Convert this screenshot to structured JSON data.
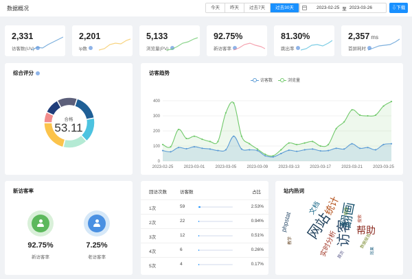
{
  "header": {
    "title": "数据概况",
    "range_tabs": [
      "今天",
      "昨天",
      "过去7天",
      "过去30天"
    ],
    "active_tab_index": 3,
    "date_from": "2023-02-25",
    "date_sep": "至",
    "date_to": "2023-03-26",
    "download_label": "下载"
  },
  "stats": [
    {
      "value": "2,331",
      "unit": "",
      "label": "访客数(UV)",
      "spark_color": "#5b9bd5"
    },
    {
      "value": "2,201",
      "unit": "",
      "label": "Ip数",
      "spark_color": "#f6c85f"
    },
    {
      "value": "5,133",
      "unit": "",
      "label": "浏览量(PV)",
      "spark_color": "#6dc96d"
    },
    {
      "value": "92.75%",
      "unit": "",
      "label": "新访客率",
      "spark_color": "#f28b9b"
    },
    {
      "value": "81.30%",
      "unit": "",
      "label": "跳出率",
      "spark_color": "#5bc0de"
    },
    {
      "value": "2,357",
      "unit": "ms",
      "label": "首屏耗时",
      "spark_color": "#5b9bd5"
    }
  ],
  "score": {
    "title": "综合评分",
    "center_label": "合格",
    "center_value": "53.11",
    "segments": [
      {
        "value": 17,
        "color": "#1f5f96"
      },
      {
        "value": 16,
        "color": "#4cc3e0"
      },
      {
        "value": 16,
        "color": "#b4ead4"
      },
      {
        "value": 21,
        "color": "#fbc34b"
      },
      {
        "value": 7,
        "color": "#f28c8c"
      },
      {
        "value": 10,
        "color": "#1f3d7a"
      },
      {
        "value": 13,
        "color": "#5c5f7a"
      }
    ]
  },
  "trend": {
    "title": "访客趋势",
    "legend": [
      "访客数",
      "浏览量"
    ],
    "series_colors": [
      "#5b9bd5",
      "#70c96a"
    ]
  },
  "chart_data": {
    "type": "line",
    "x_ticks": [
      "2023-02-25",
      "2023-03-01",
      "2023-03-05",
      "2023-03-09",
      "2023-03-13",
      "2023-03-17",
      "2023-03-21",
      "2023-03-25"
    ],
    "x": [
      "2023-02-25",
      "2023-02-26",
      "2023-02-27",
      "2023-02-28",
      "2023-03-01",
      "2023-03-02",
      "2023-03-03",
      "2023-03-04",
      "2023-03-05",
      "2023-03-06",
      "2023-03-07",
      "2023-03-08",
      "2023-03-09",
      "2023-03-10",
      "2023-03-11",
      "2023-03-12",
      "2023-03-13",
      "2023-03-14",
      "2023-03-15",
      "2023-03-16",
      "2023-03-17",
      "2023-03-18",
      "2023-03-19",
      "2023-03-20",
      "2023-03-21",
      "2023-03-22",
      "2023-03-23",
      "2023-03-24",
      "2023-03-25",
      "2023-03-26"
    ],
    "series": [
      {
        "name": "访客数",
        "values": [
          70,
          62,
          90,
          82,
          95,
          85,
          80,
          70,
          75,
          165,
          80,
          75,
          70,
          35,
          28,
          50,
          72,
          65,
          75,
          80,
          68,
          70,
          85,
          80,
          115,
          85,
          90,
          75,
          110,
          115
        ]
      },
      {
        "name": "浏览量",
        "values": [
          110,
          95,
          210,
          150,
          165,
          145,
          130,
          130,
          320,
          385,
          165,
          115,
          80,
          45,
          35,
          75,
          120,
          110,
          120,
          130,
          100,
          110,
          215,
          260,
          340,
          305,
          300,
          305,
          365,
          395
        ]
      }
    ],
    "ylim": [
      0,
      400
    ],
    "y_ticks": [
      0,
      100,
      200,
      300,
      400
    ],
    "grid": true,
    "legend_position": "top-center"
  },
  "new_visitors": {
    "title": "新访客率",
    "new_pct": "92.75%",
    "new_label": "新访客率",
    "new_color": "#5cb85c",
    "old_pct": "7.25%",
    "old_label": "老访客率",
    "old_color": "#4a90e2"
  },
  "visits_table": {
    "headers": [
      "回访次数",
      "访客数",
      "占比"
    ],
    "rows": [
      {
        "label": "1次",
        "count": "59",
        "ratio": 0.0253,
        "pct": "2.53%"
      },
      {
        "label": "2次",
        "count": "22",
        "ratio": 0.0094,
        "pct": "0.94%"
      },
      {
        "label": "3次",
        "count": "12",
        "ratio": 0.0051,
        "pct": "0.51%"
      },
      {
        "label": "4次",
        "count": "6",
        "ratio": 0.0026,
        "pct": "0.26%"
      },
      {
        "label": "5次",
        "count": "4",
        "ratio": 0.0017,
        "pct": "0.17%"
      }
    ]
  },
  "hot_words": {
    "title": "站内热词",
    "words": [
      {
        "text": "访客",
        "color": "#2e4d6b"
      },
      {
        "text": "网站",
        "color": "#1e3f5a"
      },
      {
        "text": "帮助",
        "color": "#8a2a1f"
      },
      {
        "text": "统计",
        "color": "#b5531e"
      },
      {
        "text": "翻画",
        "color": "#1c5570"
      },
      {
        "text": "文档",
        "color": "#1d6a8a"
      },
      {
        "text": "phpstat",
        "color": "#2c4d6c"
      },
      {
        "text": "实时分析",
        "color": "#a03525"
      },
      {
        "text": "数据报告",
        "color": "#7a8a2e"
      },
      {
        "text": "教学",
        "color": "#6a4a2a"
      },
      {
        "text": "搜索",
        "color": "#b0422e"
      },
      {
        "text": "精品",
        "color": "#5a8a3a"
      },
      {
        "text": "首页",
        "color": "#5a5a8a"
      },
      {
        "text": "效果",
        "color": "#2e6b8a"
      }
    ]
  }
}
